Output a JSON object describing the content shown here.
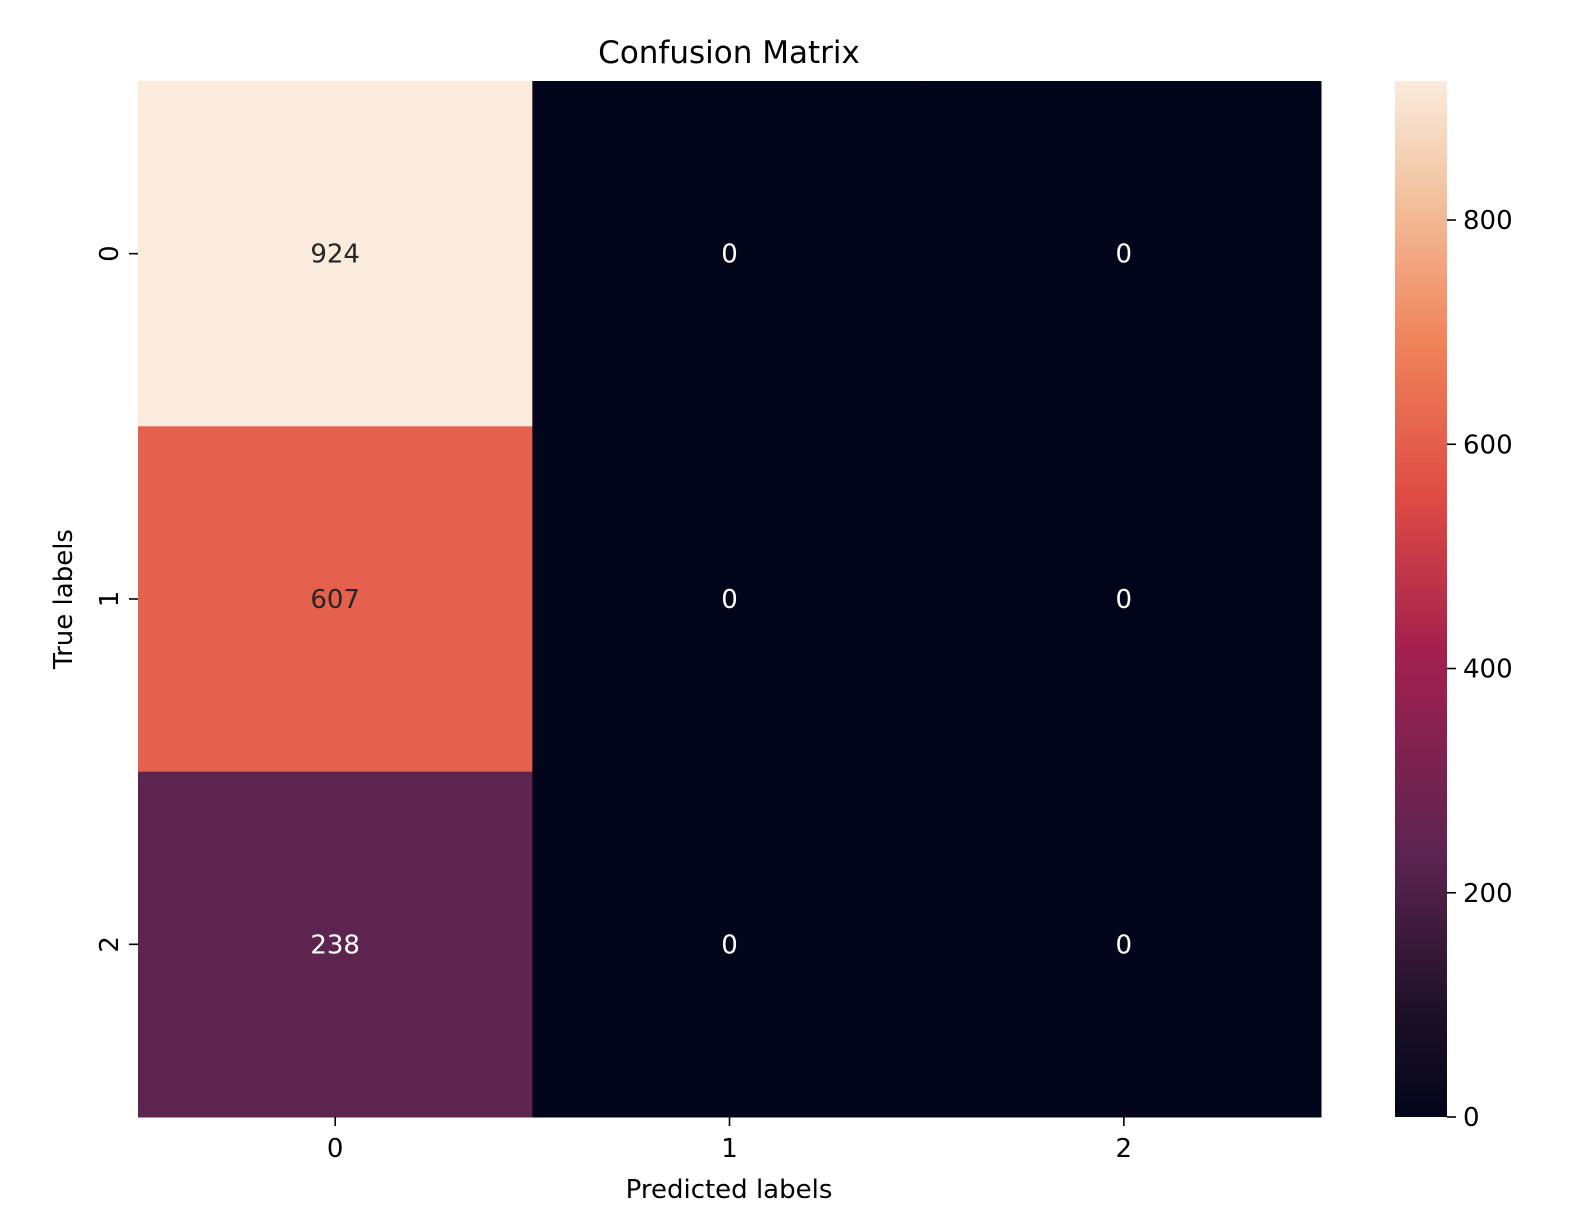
{
  "chart_data": {
    "type": "heatmap",
    "title": "Confusion Matrix",
    "xlabel": "Predicted labels",
    "ylabel": "True labels",
    "x_categories": [
      "0",
      "1",
      "2"
    ],
    "y_categories": [
      "0",
      "1",
      "2"
    ],
    "values": [
      [
        924,
        0,
        0
      ],
      [
        607,
        0,
        0
      ],
      [
        238,
        0,
        0
      ]
    ],
    "colorbar": {
      "range": [
        0,
        924
      ],
      "ticks": [
        0,
        200,
        400,
        600,
        800
      ],
      "colormap": "rocket"
    },
    "annotations": true
  }
}
